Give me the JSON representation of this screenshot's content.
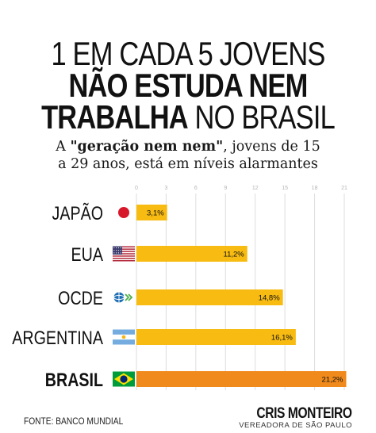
{
  "header": {
    "line1": "1 EM CADA 5 JOVENS",
    "line2": "NÃO ESTUDA NEM",
    "line3_bold": "TRABALHA",
    "line3_light": " NO BRASIL"
  },
  "subtitle": {
    "pre": "A ",
    "bold": "\"geração nem nem\"",
    "post": ", jovens de 15",
    "line2": "a 29 anos, está em níveis alarmantes"
  },
  "chart_data": {
    "type": "bar",
    "orientation": "horizontal",
    "categories": [
      "JAPÃO",
      "EUA",
      "OCDE",
      "ARGENTINA",
      "BRASIL"
    ],
    "values": [
      3.1,
      11.2,
      14.8,
      16.1,
      21.2
    ],
    "value_labels": [
      "3,1%",
      "11,2%",
      "14,8%",
      "16,1%",
      "21,2%"
    ],
    "xticks": [
      0,
      3,
      6,
      9,
      12,
      15,
      18,
      21
    ],
    "xlim": [
      0,
      21
    ],
    "grid": true,
    "bar_color": "#f7bb12",
    "highlight_color": "#f08a1c",
    "highlight_category": "BRASIL"
  },
  "footer": {
    "source": "FONTE: BANCO MUNDIAL",
    "brand": "CRIS MONTEIRO",
    "brand_sub": "VEREADORA DE SÃO PAULO"
  }
}
